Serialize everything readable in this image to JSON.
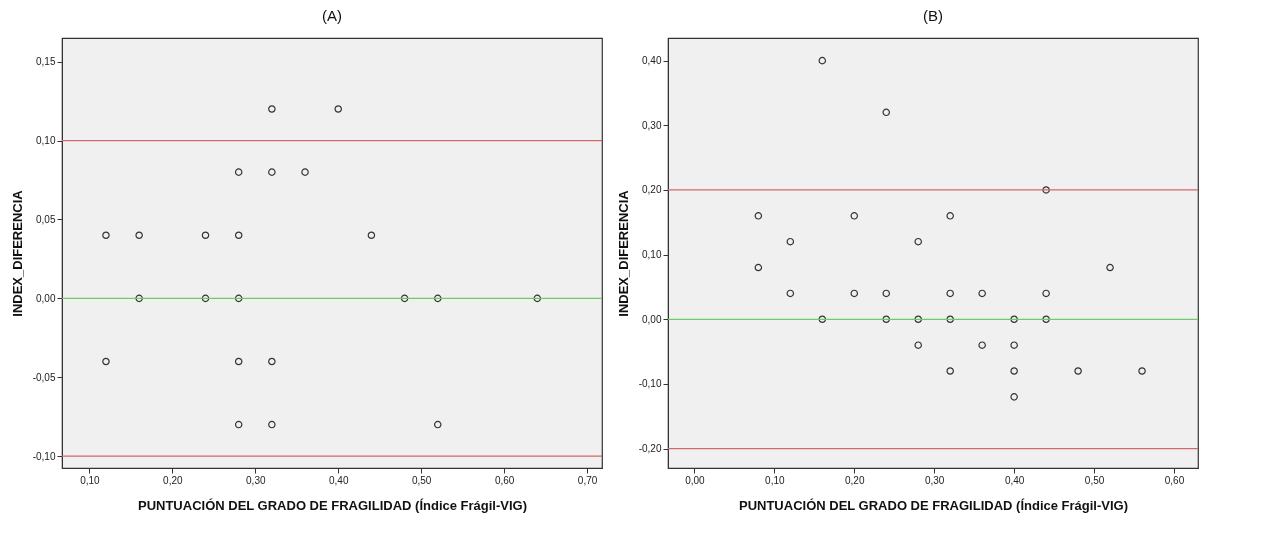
{
  "chart_data": [
    {
      "type": "scatter",
      "title": "(A)",
      "xlabel": "PUNTUACIÓN DEL GRADO DE FRAGILIDAD (Índice Frágil-VIG)",
      "ylabel": "INDEX_DIFERENCIA",
      "marker": "circle",
      "grid": false,
      "xlim": [
        0.067,
        0.718
      ],
      "ylim": [
        -0.1075,
        0.165
      ],
      "xticks": [
        {
          "value": 0.1,
          "label": "0,10"
        },
        {
          "value": 0.2,
          "label": "0,20"
        },
        {
          "value": 0.3,
          "label": "0,30"
        },
        {
          "value": 0.4,
          "label": "0,40"
        },
        {
          "value": 0.5,
          "label": "0,50"
        },
        {
          "value": 0.6,
          "label": "0,60"
        },
        {
          "value": 0.7,
          "label": "0,70"
        }
      ],
      "yticks": [
        {
          "value": -0.1,
          "label": "-0,10"
        },
        {
          "value": -0.05,
          "label": "-0,05"
        },
        {
          "value": 0,
          "label": "0,00"
        },
        {
          "value": 0.05,
          "label": "0,05"
        },
        {
          "value": 0.1,
          "label": "0,10"
        },
        {
          "value": 0.15,
          "label": "0,15"
        }
      ],
      "series": [
        {
          "color": "#333333",
          "x": [
            0.12,
            0.16,
            0.24,
            0.28,
            0.44,
            0.32,
            0.4,
            0.28,
            0.32,
            0.36,
            0.16,
            0.24,
            0.28,
            0.48,
            0.52,
            0.64,
            0.12,
            0.28,
            0.32,
            0.28,
            0.32,
            0.52
          ],
          "values": [
            0.04,
            0.04,
            0.04,
            0.04,
            0.04,
            0.12,
            0.12,
            0.08,
            0.08,
            0.08,
            0,
            0,
            0,
            0,
            0,
            0,
            -0.04,
            -0.04,
            -0.04,
            -0.08,
            -0.08,
            -0.08
          ]
        }
      ],
      "ref_lines": [
        {
          "axis": "y",
          "value": 0.1,
          "color": "#d06a68"
        },
        {
          "axis": "y",
          "value": 0,
          "color": "#6ccc6c"
        },
        {
          "axis": "y",
          "value": -0.1,
          "color": "#d06a68"
        }
      ]
    },
    {
      "type": "scatter",
      "title": "(B)",
      "xlabel": "PUNTUACIÓN DEL GRADO DE FRAGILIDAD (Índice Frágil-VIG)",
      "ylabel": "INDEX_DIFERENCIA",
      "marker": "circle",
      "grid": false,
      "xlim": [
        -0.033,
        0.63
      ],
      "ylim": [
        -0.23,
        0.435
      ],
      "xticks": [
        {
          "value": 0,
          "label": "0,00"
        },
        {
          "value": 0.1,
          "label": "0,10"
        },
        {
          "value": 0.2,
          "label": "0,20"
        },
        {
          "value": 0.3,
          "label": "0,30"
        },
        {
          "value": 0.4,
          "label": "0,40"
        },
        {
          "value": 0.5,
          "label": "0,50"
        },
        {
          "value": 0.6,
          "label": "0,60"
        }
      ],
      "yticks": [
        {
          "value": -0.2,
          "label": "-0,20"
        },
        {
          "value": -0.1,
          "label": "-0,10"
        },
        {
          "value": 0,
          "label": "0,00"
        },
        {
          "value": 0.1,
          "label": "0,10"
        },
        {
          "value": 0.2,
          "label": "0,20"
        },
        {
          "value": 0.3,
          "label": "0,30"
        },
        {
          "value": 0.4,
          "label": "0,40"
        }
      ],
      "series": [
        {
          "color": "#333333",
          "x": [
            0.16,
            0.24,
            0.44,
            0.08,
            0.2,
            0.32,
            0.12,
            0.28,
            0.08,
            0.52,
            0.12,
            0.2,
            0.24,
            0.32,
            0.36,
            0.44,
            0.16,
            0.24,
            0.28,
            0.32,
            0.4,
            0.44,
            0.28,
            0.36,
            0.4,
            0.32,
            0.4,
            0.48,
            0.56,
            0.4
          ],
          "values": [
            0.4,
            0.32,
            0.2,
            0.16,
            0.16,
            0.16,
            0.12,
            0.12,
            0.08,
            0.08,
            0.04,
            0.04,
            0.04,
            0.04,
            0.04,
            0.04,
            0,
            0,
            0,
            0,
            0,
            0,
            -0.04,
            -0.04,
            -0.04,
            -0.08,
            -0.08,
            -0.08,
            -0.08,
            -0.12
          ]
        }
      ],
      "ref_lines": [
        {
          "axis": "y",
          "value": 0.2,
          "color": "#d06a68"
        },
        {
          "axis": "y",
          "value": 0,
          "color": "#6ccc6c"
        },
        {
          "axis": "y",
          "value": -0.2,
          "color": "#d06a68"
        }
      ]
    }
  ]
}
